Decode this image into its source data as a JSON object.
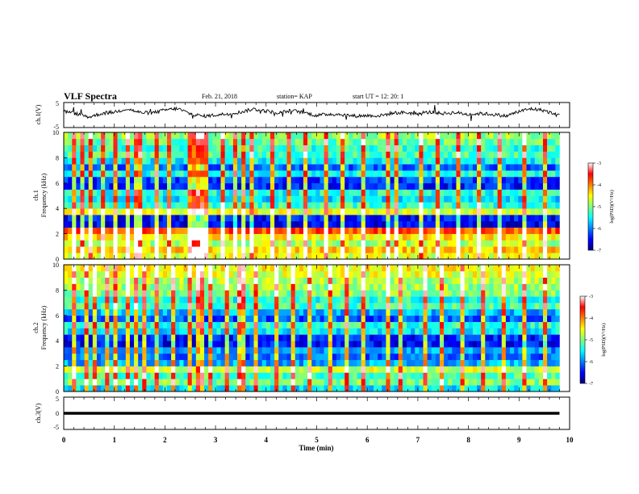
{
  "header": {
    "title": "VLF Spectra",
    "date": "Feb. 21, 2018",
    "station": "station= KAP",
    "start": "start UT = 12: 20: 1"
  },
  "chart_data": [
    {
      "type": "line",
      "panel": "ch1-waveform",
      "ylabel": "ch.1(V)",
      "ylim": [
        -5,
        5
      ],
      "y_ticks": [
        "5",
        "-5"
      ],
      "xlim": [
        0,
        10
      ],
      "series_color": "#000000",
      "x": [
        0.0,
        0.25,
        0.5,
        0.75,
        1.0,
        1.25,
        1.5,
        1.75,
        2.0,
        2.25,
        2.5,
        2.75,
        3.0,
        3.25,
        3.5,
        3.75,
        4.0,
        4.25,
        4.5,
        4.75,
        5.0,
        5.25,
        5.5,
        5.75,
        6.0,
        6.25,
        6.5,
        6.75,
        7.0,
        7.25,
        7.5,
        7.75,
        8.0,
        8.25,
        8.5,
        8.75,
        9.0,
        9.25,
        9.5,
        9.75
      ],
      "values": [
        1.5,
        0.5,
        -0.8,
        0.6,
        1.2,
        2.5,
        1.0,
        0.8,
        2.0,
        2.6,
        0.5,
        -0.5,
        0.0,
        0.5,
        1.2,
        2.4,
        1.6,
        0.8,
        1.8,
        1.0,
        -0.2,
        0.4,
        0.2,
        -0.4,
        -0.2,
        -0.3,
        0.8,
        1.0,
        0.4,
        1.2,
        0.6,
        1.0,
        0.2,
        0.6,
        0.2,
        -0.4,
        1.5,
        2.5,
        1.8,
        0.0
      ]
    },
    {
      "type": "heatmap",
      "panel": "ch1-spectrogram",
      "ylabel_lines": [
        "ch.1",
        "Frequency (kHz)"
      ],
      "ylim": [
        0,
        10
      ],
      "y_ticks": [
        "0",
        "2",
        "4",
        "6",
        "8",
        "10"
      ],
      "xlim": [
        0,
        10
      ],
      "colorbar": {
        "label": "log(PSD)(V²/Hz)",
        "range": [
          -7,
          -3
        ],
        "ticks": [
          "-3",
          "-4",
          "-5",
          "-6",
          "-7"
        ],
        "colors": [
          "#00007f",
          "#0000ff",
          "#0080ff",
          "#00ffff",
          "#7fff7f",
          "#ffff00",
          "#ff8000",
          "#ff0000",
          "#ffffff"
        ]
      },
      "freq_kHz": [
        0.25,
        0.75,
        1.25,
        1.75,
        2.25,
        2.75,
        3.25,
        3.75,
        4.25,
        4.75,
        5.25,
        5.75,
        6.25,
        6.75,
        7.25,
        7.75,
        8.25,
        8.75,
        9.25,
        9.75
      ],
      "log_psd_profile": [
        -4.6,
        -4.3,
        -4.8,
        -4.4,
        -3.8,
        -6.6,
        -6.5,
        -4.6,
        -5.3,
        -5.6,
        -5.4,
        -6.4,
        -6.3,
        -5.4,
        -6.1,
        -5.5,
        -5.2,
        -5.3,
        -5.1,
        -4.9
      ],
      "bright_times_min": [
        0.2,
        0.33,
        0.5,
        0.77,
        1.0,
        1.22,
        1.35,
        1.5,
        1.76,
        2.07,
        2.42,
        2.55,
        2.63,
        2.7,
        2.8,
        3.1,
        3.35,
        3.48,
        3.7,
        4.1,
        4.45,
        4.75,
        5.15,
        5.5,
        5.85,
        6.35,
        6.55,
        7.05,
        7.35,
        7.75,
        8.2,
        8.6,
        9.05,
        9.45
      ]
    },
    {
      "type": "heatmap",
      "panel": "ch2-spectrogram",
      "ylabel_lines": [
        "ch.2",
        "Frequency (kHz)"
      ],
      "ylim": [
        0,
        10
      ],
      "y_ticks": [
        "0",
        "2",
        "4",
        "6",
        "8",
        "10"
      ],
      "xlim": [
        0,
        10
      ],
      "colorbar": {
        "label": "log(PSD)(V²/Hz)",
        "range": [
          -7,
          -3
        ],
        "ticks": [
          "-3",
          "-4",
          "-5",
          "-6",
          "-7"
        ],
        "colors": [
          "#00007f",
          "#0000ff",
          "#0080ff",
          "#00ffff",
          "#7fff7f",
          "#ffff00",
          "#ff8000",
          "#ff0000",
          "#ffffff"
        ]
      },
      "freq_kHz": [
        0.25,
        0.75,
        1.25,
        1.75,
        2.25,
        2.75,
        3.25,
        3.75,
        4.25,
        4.75,
        5.25,
        5.75,
        6.25,
        6.75,
        7.25,
        7.75,
        8.25,
        8.75,
        9.25,
        9.75
      ],
      "log_psd_profile": [
        -5.6,
        -5.0,
        -5.2,
        -4.7,
        -5.8,
        -6.1,
        -5.9,
        -6.5,
        -6.4,
        -5.6,
        -5.3,
        -6.2,
        -5.8,
        -5.2,
        -5.4,
        -5.0,
        -4.9,
        -4.8,
        -4.6,
        -4.5
      ],
      "bright_times_min": [
        0.2,
        0.4,
        0.55,
        0.8,
        1.0,
        1.22,
        1.35,
        1.55,
        1.8,
        2.1,
        2.45,
        2.6,
        2.7,
        2.85,
        3.15,
        3.4,
        3.55,
        3.75,
        4.15,
        4.5,
        4.8,
        5.2,
        5.55,
        5.9,
        6.4,
        6.6,
        7.1,
        7.4,
        7.8,
        8.25,
        8.65,
        9.1,
        9.5
      ]
    },
    {
      "type": "line",
      "panel": "ch3-waveform",
      "ylabel": "ch.3(V)",
      "ylim": [
        -5,
        5
      ],
      "y_ticks": [
        "5",
        "0",
        "-5"
      ],
      "xlim": [
        0,
        10
      ],
      "xlabel": "Time (min)",
      "x_ticks": [
        "0",
        "1",
        "2",
        "3",
        "4",
        "5",
        "6",
        "7",
        "8",
        "9",
        "10"
      ],
      "series_color": "#000000",
      "x": [
        0.0,
        9.8
      ],
      "values": [
        0.0,
        0.0
      ]
    }
  ]
}
